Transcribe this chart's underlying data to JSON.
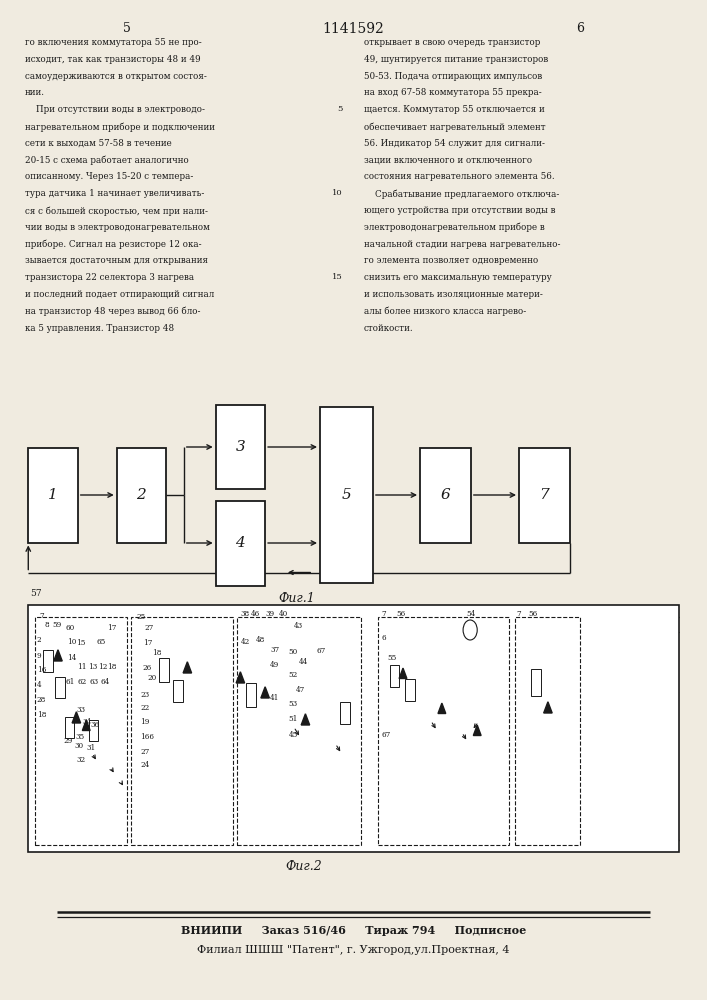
{
  "title": "1141592",
  "page_left": "5",
  "page_right": "6",
  "fig1_label": "Фиг.1",
  "fig2_label": "Фиг.2",
  "footer_line1": "ВНИИПИ     Заказ 516/46     Тираж 794     Подписное",
  "footer_line2": "Филиал ШШШ \"Патент\", г. Ужгород,ул.Проектная, 4",
  "bg_color": "#f0ebe0",
  "text_color": "#1a1a1a",
  "box_color": "#1a1a1a",
  "text_left": [
    "го включения коммутатора 55 не про-",
    "исходит, так как транзисторы 48 и 49",
    "самоудерживаются в открытом состоя-",
    "нии.",
    "    При отсутствии воды в электроводо-",
    "нагревательном приборе и подключении",
    "сети к выходам 57-58 в течение",
    "20-15 с схема работает аналогично",
    "описанному. Через 15-20 с темпера-",
    "тура датчика 1 начинает увеличивать-",
    "ся с большей скоростью, чем при нали-",
    "чии воды в электроводонагревательном",
    "приборе. Сигнал на резисторе 12 ока-",
    "зывается достаточным для открывания",
    "транзистора 22 селектора 3 нагрева",
    "и последний подает отпирающий сигнал",
    "на транзистор 48 через вывод 66 бло-",
    "ка 5 управления. Транзистор 48"
  ],
  "text_right": [
    "открывает в свою очередь транзистор",
    "49, шунтируется питание транзисторов",
    "50-53. Подача отпирающих импульсов",
    "на вход 67-58 коммутатора 55 прекра-",
    "щается. Коммутатор 55 отключается и",
    "обеспечивает нагревательный элемент",
    "56. Индикатор 54 служит для сигнали-",
    "зации включенного и отключенного",
    "состояния нагревательного элемента 56.",
    "    Срабатывание предлагаемого отключа-",
    "ющего устройства при отсутствии воды в",
    "электроводонагревательном приборе в",
    "начальной стадии нагрева нагревательно-",
    "го элемента позволяет одновременно",
    "снизить его максимальную температуру",
    "и использовать изоляционные матери-",
    "алы более низкого класса нагрево-",
    "стойкости."
  ]
}
